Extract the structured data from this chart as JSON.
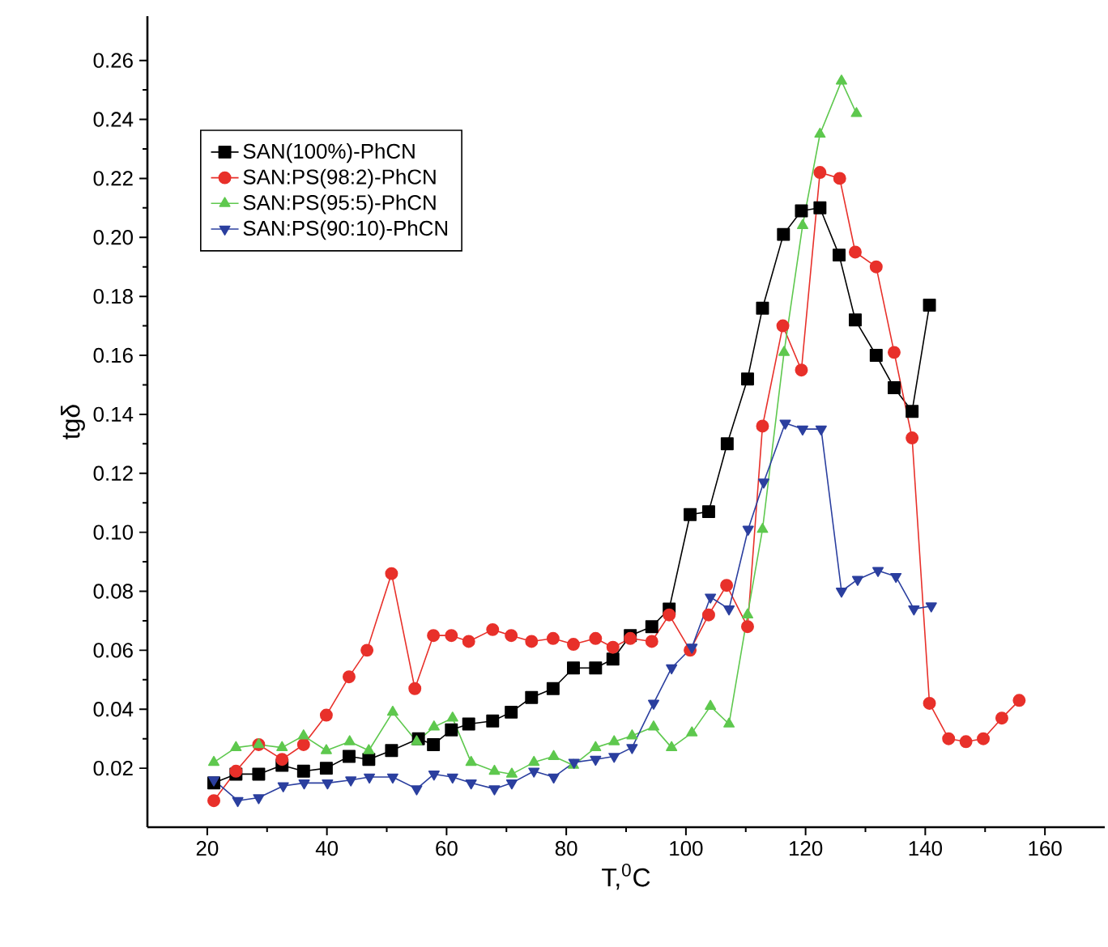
{
  "chart_data": {
    "type": "line",
    "xlabel": "T,$^{0}$C",
    "ylabel": "tgδ",
    "xlim": [
      10,
      170
    ],
    "ylim": [
      0,
      0.275
    ],
    "xticks": [
      20,
      40,
      60,
      80,
      100,
      120,
      140,
      160
    ],
    "yticks": [
      0.02,
      0.04,
      0.06,
      0.08,
      {
        "value": 0.1,
        "label": "0.10"
      },
      0.12,
      0.14,
      0.16,
      0.18,
      {
        "value": 0.2,
        "label": "0.20"
      },
      0.22,
      0.24,
      0.26
    ],
    "legend": "top left",
    "grid": false,
    "series": [
      {
        "name": "SAN(100%)-PhCN",
        "color": "#000000",
        "marker": "square",
        "x": [
          21.1,
          24.8,
          28.6,
          32.5,
          36.1,
          39.9,
          43.7,
          47.0,
          50.8,
          55.3,
          57.8,
          60.8,
          63.7,
          67.7,
          70.8,
          74.2,
          77.8,
          81.2,
          84.9,
          87.8,
          90.7,
          94.3,
          97.2,
          100.7,
          103.8,
          106.9,
          110.3,
          112.8,
          116.3,
          119.3,
          122.4,
          125.6,
          128.3,
          131.8,
          134.8,
          137.8,
          140.7
        ],
        "values": [
          0.015,
          0.018,
          0.018,
          0.021,
          0.019,
          0.02,
          0.024,
          0.023,
          0.026,
          0.03,
          0.028,
          0.033,
          0.035,
          0.036,
          0.039,
          0.044,
          0.047,
          0.054,
          0.054,
          0.057,
          0.065,
          0.068,
          0.074,
          0.106,
          0.107,
          0.13,
          0.152,
          0.176,
          0.201,
          0.209,
          0.21,
          0.194,
          0.172,
          0.16,
          0.149,
          0.141,
          0.177
        ]
      },
      {
        "name": "SAN:PS(98:2)-PhCN",
        "color": "#e8302a",
        "marker": "circle",
        "x": [
          21.1,
          24.8,
          28.6,
          32.5,
          36.1,
          39.9,
          43.7,
          46.7,
          50.8,
          54.7,
          57.8,
          60.8,
          63.7,
          67.7,
          70.8,
          74.2,
          77.8,
          81.2,
          84.9,
          87.8,
          90.7,
          94.3,
          97.2,
          100.7,
          103.8,
          106.8,
          110.3,
          112.8,
          116.2,
          119.3,
          122.4,
          125.7,
          128.3,
          131.8,
          134.8,
          137.8,
          140.7,
          143.9,
          146.8,
          149.7,
          152.8,
          155.7
        ],
        "values": [
          0.009,
          0.019,
          0.028,
          0.023,
          0.028,
          0.038,
          0.051,
          0.06,
          0.086,
          0.047,
          0.065,
          0.065,
          0.063,
          0.067,
          0.065,
          0.063,
          0.064,
          0.062,
          0.064,
          0.061,
          0.064,
          0.063,
          0.072,
          0.06,
          0.072,
          0.082,
          0.068,
          0.136,
          0.17,
          0.155,
          0.222,
          0.22,
          0.195,
          0.19,
          0.161,
          0.132,
          0.042,
          0.03,
          0.029,
          0.03,
          0.037,
          0.043
        ]
      },
      {
        "name": "SAN:PS(95:5)-PhCN",
        "color": "#5ec84e",
        "marker": "triangle",
        "x": [
          21.1,
          24.8,
          28.6,
          32.5,
          36.1,
          39.9,
          43.8,
          47.0,
          51.0,
          55.0,
          57.9,
          61.0,
          64.1,
          68.0,
          70.9,
          74.6,
          77.9,
          81.2,
          84.9,
          88.0,
          91.0,
          94.6,
          97.6,
          101.0,
          104.1,
          107.2,
          110.3,
          112.8,
          116.4,
          119.5,
          122.4,
          126.0,
          128.5
        ],
        "values": [
          0.022,
          0.027,
          0.028,
          0.027,
          0.031,
          0.026,
          0.029,
          0.026,
          0.039,
          0.029,
          0.034,
          0.037,
          0.022,
          0.019,
          0.018,
          0.022,
          0.024,
          0.021,
          0.027,
          0.029,
          0.031,
          0.034,
          0.027,
          0.032,
          0.041,
          0.035,
          0.072,
          0.101,
          0.161,
          0.204,
          0.235,
          0.253,
          0.242
        ]
      },
      {
        "name": "SAN:PS(90:10)-PhCN",
        "color": "#2b3f9f",
        "marker": "triangle down",
        "x": [
          21.1,
          25.1,
          28.6,
          32.7,
          36.2,
          40.1,
          44.0,
          47.1,
          51.0,
          55.0,
          57.9,
          61.0,
          64.1,
          68.0,
          70.9,
          74.6,
          77.9,
          81.3,
          84.9,
          88.0,
          91.0,
          94.6,
          97.6,
          101.0,
          104.1,
          107.2,
          110.4,
          113.0,
          116.6,
          119.5,
          122.6,
          126.0,
          128.7,
          132.1,
          135.1,
          138.1,
          141.0
        ],
        "values": [
          0.016,
          0.009,
          0.01,
          0.014,
          0.015,
          0.015,
          0.016,
          0.017,
          0.017,
          0.013,
          0.018,
          0.017,
          0.015,
          0.013,
          0.015,
          0.019,
          0.017,
          0.022,
          0.023,
          0.024,
          0.027,
          0.042,
          0.054,
          0.061,
          0.078,
          0.074,
          0.101,
          0.117,
          0.137,
          0.135,
          0.135,
          0.08,
          0.084,
          0.087,
          0.085,
          0.074,
          0.075
        ]
      }
    ]
  }
}
